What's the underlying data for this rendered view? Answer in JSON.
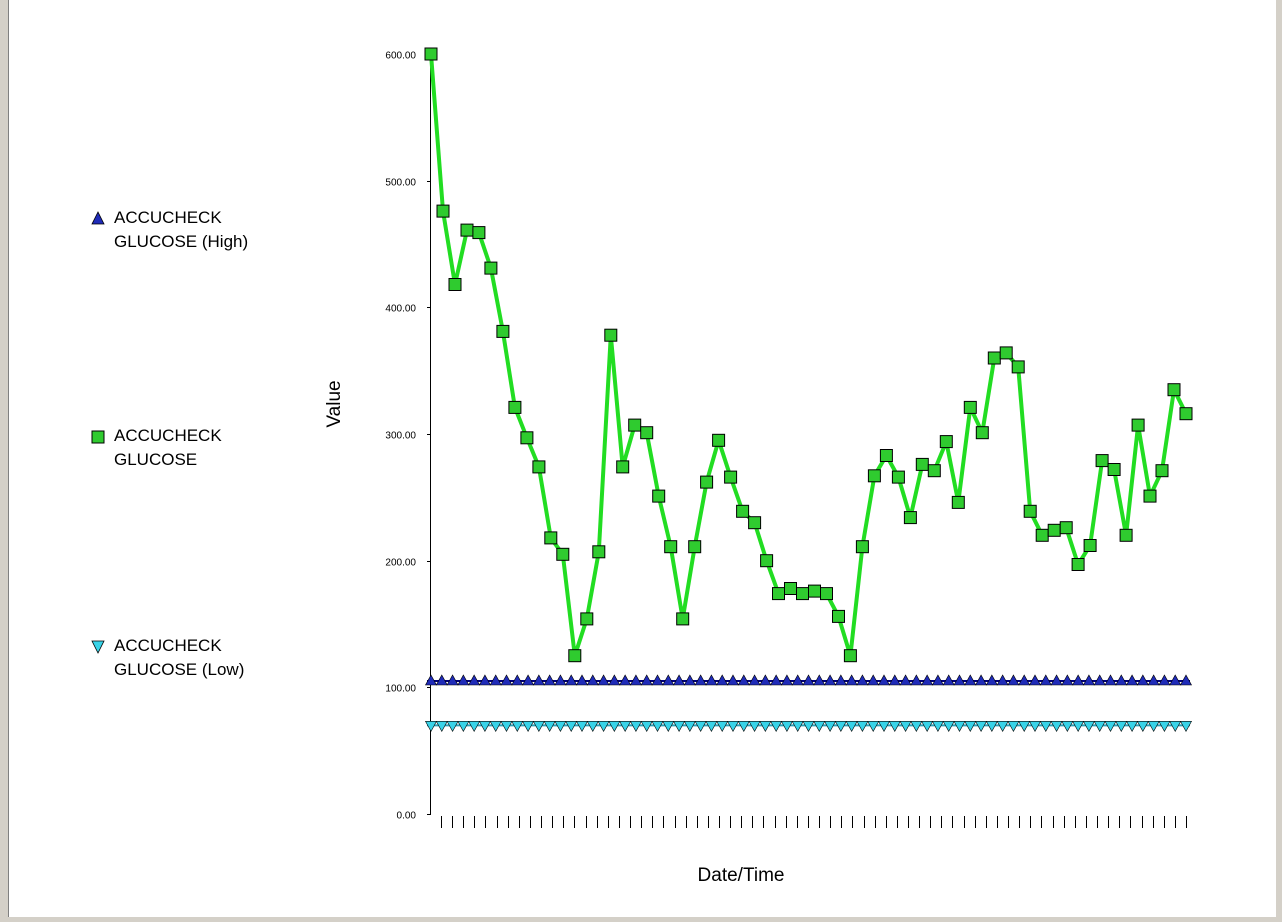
{
  "colors": {
    "high": "#1f2bb8",
    "glucose": "#22dd22",
    "glucose_marker": "#2fcb2f",
    "low": "#38d3e8",
    "axis": "#000000",
    "frame_dark": "#808080",
    "frame_light": "#d4d0c8"
  },
  "legend": [
    {
      "series": "high",
      "icon": "triangle-up-icon",
      "line1": "ACCUCHECK",
      "line2": "GLUCOSE (High)"
    },
    {
      "series": "glucose",
      "icon": "square-icon",
      "line1": "ACCUCHECK",
      "line2": "GLUCOSE"
    },
    {
      "series": "low",
      "icon": "triangle-down-icon",
      "line1": "ACCUCHECK",
      "line2": "GLUCOSE (Low)"
    }
  ],
  "chart_data": {
    "type": "line",
    "xlabel": "Date/Time",
    "ylabel": "Value",
    "ylim": [
      0,
      600
    ],
    "yticks": [
      0,
      100,
      200,
      300,
      400,
      500,
      600
    ],
    "ytick_labels": [
      "0.00",
      "100.00",
      "200.00",
      "300.00",
      "400.00",
      "500.00",
      "600.00"
    ],
    "x_tick_count": 68,
    "x_tick_labels_shown": false,
    "grid": false,
    "legend_position": "left",
    "series": [
      {
        "name": "ACCUCHECK GLUCOSE (High)",
        "key": "high",
        "marker": "triangle-up",
        "values": [
          105,
          105,
          105,
          105,
          105,
          105,
          105,
          105,
          105,
          105,
          105,
          105,
          105,
          105,
          105,
          105,
          105,
          105,
          105,
          105,
          105,
          105,
          105,
          105,
          105,
          105,
          105,
          105,
          105,
          105,
          105,
          105,
          105,
          105,
          105,
          105,
          105,
          105,
          105,
          105,
          105,
          105,
          105,
          105,
          105,
          105,
          105,
          105,
          105,
          105,
          105,
          105,
          105,
          105,
          105,
          105,
          105,
          105,
          105,
          105,
          105,
          105,
          105,
          105,
          105,
          105,
          105,
          105,
          105,
          105,
          105
        ]
      },
      {
        "name": "ACCUCHECK GLUCOSE",
        "key": "glucose",
        "marker": "square",
        "values": [
          600,
          476,
          418,
          461,
          459,
          431,
          381,
          321,
          297,
          274,
          218,
          205,
          125,
          154,
          207,
          378,
          274,
          307,
          301,
          251,
          211,
          154,
          211,
          262,
          295,
          266,
          239,
          230,
          200,
          174,
          178,
          174,
          176,
          174,
          156,
          125,
          211,
          267,
          283,
          266,
          234,
          276,
          271,
          294,
          246,
          321,
          301,
          360,
          364,
          353,
          239,
          220,
          224,
          226,
          197,
          212,
          279,
          272,
          220,
          307,
          251,
          271,
          335,
          316
        ]
      },
      {
        "name": "ACCUCHECK GLUCOSE (Low)",
        "key": "low",
        "marker": "triangle-down",
        "values": [
          70,
          70,
          70,
          70,
          70,
          70,
          70,
          70,
          70,
          70,
          70,
          70,
          70,
          70,
          70,
          70,
          70,
          70,
          70,
          70,
          70,
          70,
          70,
          70,
          70,
          70,
          70,
          70,
          70,
          70,
          70,
          70,
          70,
          70,
          70,
          70,
          70,
          70,
          70,
          70,
          70,
          70,
          70,
          70,
          70,
          70,
          70,
          70,
          70,
          70,
          70,
          70,
          70,
          70,
          70,
          70,
          70,
          70,
          70,
          70,
          70,
          70,
          70,
          70,
          70,
          70,
          70,
          70,
          70,
          70,
          70
        ]
      }
    ]
  }
}
